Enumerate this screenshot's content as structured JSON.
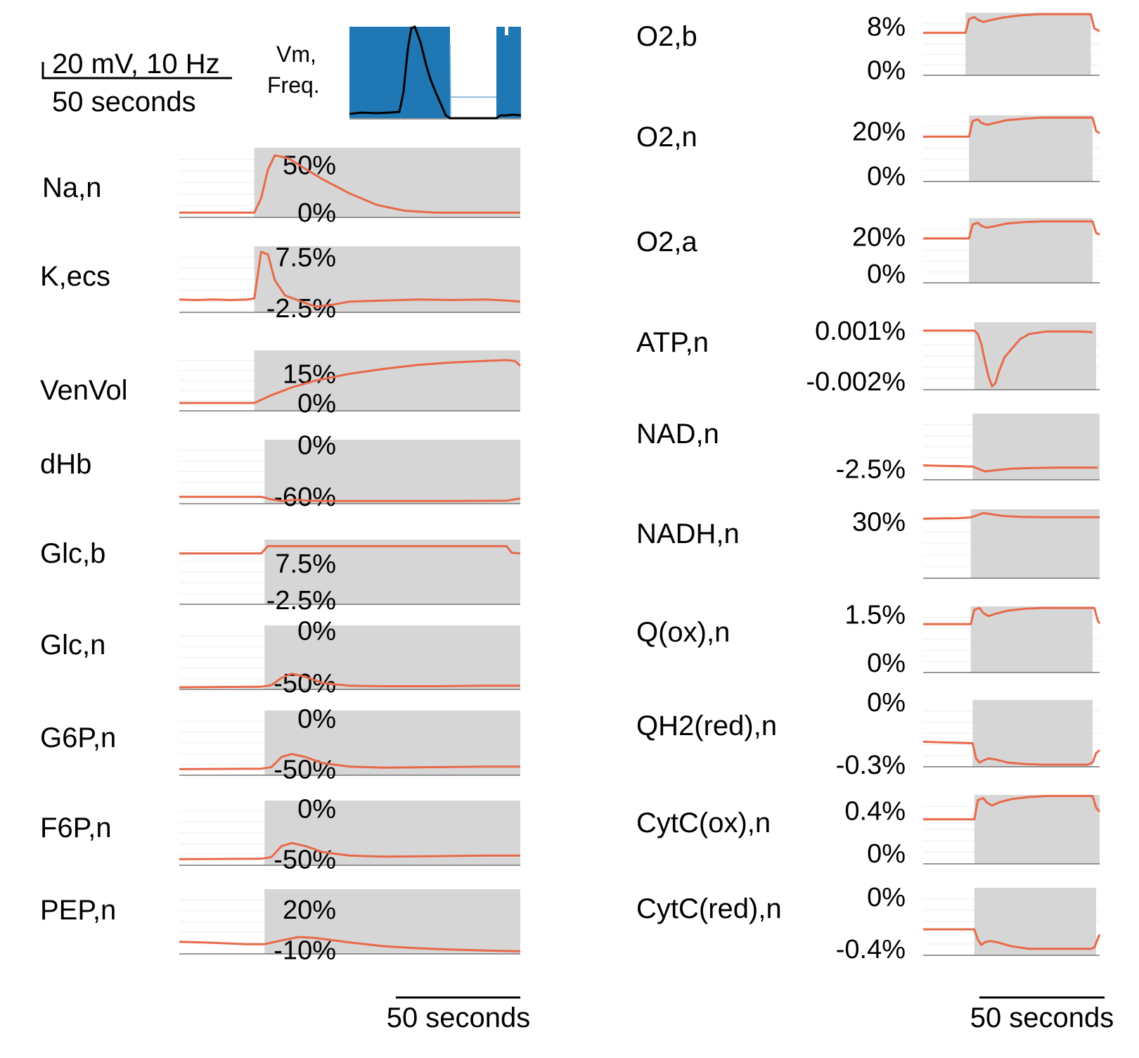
{
  "colors": {
    "trace": "#e8694a",
    "shade": "#d6d6d6",
    "vm": "#1f77b4",
    "freq": "#000000",
    "axis": "#777777",
    "grid": "#eeeeee"
  },
  "scale_bars": {
    "top_left": {
      "line1": "20 mV, 10 Hz",
      "line2": "50 seconds"
    },
    "bottom_left": "50 seconds",
    "bottom_right": "50 seconds"
  },
  "vm_panel": {
    "label_line1": "Vm,",
    "label_line2": "Freq."
  },
  "chart_data": [
    {
      "type": "line",
      "label": "Na,n",
      "ticks": [
        "50%",
        "0%"
      ],
      "tick_values": [
        50,
        0
      ],
      "ylim": [
        -5,
        68
      ],
      "stim": [
        0.22,
        1.0
      ],
      "x": [
        0,
        0.22,
        0.24,
        0.26,
        0.28,
        0.32,
        0.36,
        0.42,
        0.5,
        0.58,
        0.66,
        0.75,
        0.85,
        1.0
      ],
      "y": [
        0,
        0,
        15,
        45,
        60,
        57,
        48,
        35,
        20,
        8,
        2,
        0,
        0,
        0
      ]
    },
    {
      "type": "line",
      "label": "K,ecs",
      "ticks": [
        "7.5%",
        "-2.5%"
      ],
      "tick_values": [
        7.5,
        -2.5
      ],
      "ylim": [
        -3.3,
        9.6
      ],
      "stim": [
        0.22,
        1.0
      ],
      "x": [
        0,
        0.05,
        0.1,
        0.15,
        0.2,
        0.22,
        0.24,
        0.26,
        0.28,
        0.31,
        0.35,
        0.4,
        0.45,
        0.5,
        0.6,
        0.7,
        0.8,
        0.9,
        0.96,
        1.0
      ],
      "y": [
        -0.8,
        -0.9,
        -0.8,
        -0.9,
        -0.8,
        -0.6,
        8.5,
        8.0,
        3.0,
        0.0,
        -1.0,
        -2.2,
        -1.8,
        -1.2,
        -1.0,
        -0.8,
        -0.9,
        -0.8,
        -1.0,
        -1.2
      ]
    },
    {
      "type": "line",
      "label": "VenVol",
      "ticks": [
        "15%",
        "0%"
      ],
      "tick_values": [
        15,
        0
      ],
      "ylim": [
        -4,
        27
      ],
      "stim": [
        0.22,
        1.0
      ],
      "x": [
        0,
        0.22,
        0.27,
        0.33,
        0.4,
        0.5,
        0.6,
        0.7,
        0.8,
        0.9,
        0.96,
        0.985,
        1.0
      ],
      "y": [
        0,
        0,
        4,
        8,
        11.5,
        15,
        17.5,
        19.5,
        20.8,
        21.6,
        22,
        21.5,
        19
      ]
    },
    {
      "type": "line",
      "label": "dHb",
      "ticks": [
        "0%",
        "-60%"
      ],
      "tick_values": [
        0,
        -60
      ],
      "ylim": [
        -68,
        6
      ],
      "stim": [
        0.25,
        1.0
      ],
      "x": [
        0,
        0.24,
        0.27,
        0.3,
        0.34,
        0.38,
        0.45,
        0.6,
        0.8,
        0.96,
        1.0
      ],
      "y": [
        -60,
        -60,
        -63,
        -65,
        -63.5,
        -64.5,
        -65,
        -65,
        -65,
        -64.5,
        -62
      ]
    },
    {
      "type": "line",
      "label": "Glc,b",
      "ticks": [
        "7.5%",
        "-2.5%"
      ],
      "tick_values": [
        7.5,
        -2.5
      ],
      "ylim": [
        -3.7,
        14
      ],
      "stim": [
        0.25,
        1.0
      ],
      "x": [
        0,
        0.24,
        0.26,
        0.3,
        0.5,
        0.7,
        0.9,
        0.96,
        0.975,
        1.0
      ],
      "y": [
        10.2,
        10.2,
        12.2,
        12.2,
        12.2,
        12.2,
        12.2,
        12.2,
        10.4,
        10.2
      ]
    },
    {
      "type": "line",
      "label": "Glc,n",
      "ticks": [
        "0%",
        "-50%"
      ],
      "tick_values": [
        0,
        -50
      ],
      "ylim": [
        -56,
        5
      ],
      "stim": [
        0.25,
        1.0
      ],
      "x": [
        0,
        0.24,
        0.27,
        0.3,
        0.33,
        0.37,
        0.42,
        0.5,
        0.6,
        0.75,
        0.9,
        1.0
      ],
      "y": [
        -54,
        -53.5,
        -52,
        -45,
        -41,
        -44,
        -50,
        -52.5,
        -53,
        -53,
        -52.5,
        -52.5
      ]
    },
    {
      "type": "line",
      "label": "G6P,n",
      "ticks": [
        "0%",
        "-50%"
      ],
      "tick_values": [
        0,
        -50
      ],
      "ylim": [
        -56,
        8
      ],
      "stim": [
        0.25,
        1.0
      ],
      "x": [
        0,
        0.24,
        0.27,
        0.3,
        0.33,
        0.37,
        0.42,
        0.5,
        0.6,
        0.75,
        0.9,
        1.0
      ],
      "y": [
        -50,
        -49.5,
        -48,
        -38,
        -35,
        -38,
        -44,
        -47.5,
        -48.5,
        -48,
        -47.5,
        -47.5
      ]
    },
    {
      "type": "line",
      "label": "F6P,n",
      "ticks": [
        "0%",
        "-50%"
      ],
      "tick_values": [
        0,
        -50
      ],
      "ylim": [
        -56,
        8
      ],
      "stim": [
        0.25,
        1.0
      ],
      "x": [
        0,
        0.24,
        0.27,
        0.3,
        0.33,
        0.37,
        0.42,
        0.5,
        0.6,
        0.75,
        0.9,
        1.0
      ],
      "y": [
        -50,
        -49.5,
        -48,
        -37,
        -34,
        -37,
        -43,
        -46.5,
        -47.5,
        -47,
        -46.5,
        -46.5
      ]
    },
    {
      "type": "line",
      "label": "PEP,n",
      "ticks": [
        "20%",
        "-10%"
      ],
      "tick_values": [
        20,
        -10
      ],
      "ylim": [
        -13,
        35
      ],
      "stim": [
        0.25,
        1.0
      ],
      "x": [
        0,
        0.1,
        0.2,
        0.25,
        0.3,
        0.35,
        0.4,
        0.5,
        0.6,
        0.7,
        0.8,
        0.9,
        1.0
      ],
      "y": [
        -4,
        -4.8,
        -5.8,
        -5.8,
        -3,
        -0.5,
        -1.2,
        -4.5,
        -7.3,
        -8.8,
        -9.8,
        -10.5,
        -11
      ]
    },
    {
      "type": "line",
      "label": "O2,b",
      "ticks": [
        "8%",
        "0%"
      ],
      "tick_values": [
        8,
        0
      ],
      "ylim": [
        -1,
        10.5
      ],
      "stim": [
        0.24,
        0.95
      ],
      "x": [
        0,
        0.24,
        0.26,
        0.29,
        0.31,
        0.34,
        0.38,
        0.45,
        0.55,
        0.65,
        0.75,
        0.85,
        0.92,
        0.95,
        0.97,
        1.0
      ],
      "y": [
        6.8,
        6.8,
        9.3,
        9.7,
        9.2,
        8.8,
        9.1,
        9.6,
        10.0,
        10.2,
        10.2,
        10.2,
        10.2,
        10.2,
        7.6,
        7.1
      ]
    },
    {
      "type": "line",
      "label": "O2,n",
      "ticks": [
        "20%",
        "0%"
      ],
      "tick_values": [
        20,
        0
      ],
      "ylim": [
        -2.5,
        27
      ],
      "stim": [
        0.26,
        0.96
      ],
      "x": [
        0,
        0.26,
        0.28,
        0.31,
        0.33,
        0.36,
        0.4,
        0.47,
        0.57,
        0.67,
        0.77,
        0.87,
        0.94,
        0.96,
        0.98,
        1.0
      ],
      "y": [
        17.5,
        17.5,
        24.5,
        25.2,
        23.7,
        22.8,
        23.5,
        24.8,
        25.5,
        26,
        26,
        26,
        26,
        26,
        20,
        19
      ]
    },
    {
      "type": "line",
      "label": "O2,a",
      "ticks": [
        "20%",
        "0%"
      ],
      "tick_values": [
        20,
        0
      ],
      "ylim": [
        -5,
        30
      ],
      "stim": [
        0.26,
        0.96
      ],
      "x": [
        0,
        0.26,
        0.28,
        0.31,
        0.33,
        0.36,
        0.4,
        0.47,
        0.57,
        0.67,
        0.77,
        0.87,
        0.94,
        0.96,
        0.98,
        1.0
      ],
      "y": [
        19,
        19,
        26.5,
        27.5,
        25.8,
        24.8,
        25.5,
        27,
        27.8,
        28.2,
        28.2,
        28.2,
        28.2,
        28.2,
        22,
        21
      ]
    },
    {
      "type": "line",
      "label": "ATP,n",
      "ticks": [
        "0.001%",
        "-0.002%"
      ],
      "tick_values": [
        0.001,
        -0.002
      ],
      "ylim": [
        -0.0025,
        0.0015
      ],
      "stim": [
        0.29,
        0.98
      ],
      "x": [
        0,
        0.29,
        0.31,
        0.33,
        0.35,
        0.37,
        0.39,
        0.41,
        0.43,
        0.46,
        0.5,
        0.55,
        0.6,
        0.7,
        0.8,
        0.9,
        0.96
      ],
      "y": [
        0.001,
        0.001,
        0.0008,
        0.0002,
        -0.0008,
        -0.0017,
        -0.0023,
        -0.0021,
        -0.0014,
        -0.0006,
        -0.0001,
        0.0005,
        0.0008,
        0.00095,
        0.00095,
        0.00095,
        0.0009
      ]
    },
    {
      "type": "line",
      "label": "NAD,n",
      "ticks": [
        "-2.5%"
      ],
      "tick_values": [
        -2.5
      ],
      "ylim": [
        -3,
        0
      ],
      "stim": [
        0.28,
        1.0
      ],
      "x": [
        0,
        0.1,
        0.2,
        0.28,
        0.31,
        0.35,
        0.4,
        0.5,
        0.6,
        0.75,
        0.9,
        0.99
      ],
      "y": [
        -2.35,
        -2.37,
        -2.38,
        -2.4,
        -2.5,
        -2.62,
        -2.58,
        -2.5,
        -2.47,
        -2.45,
        -2.45,
        -2.45
      ]
    },
    {
      "type": "line",
      "label": "NADH,n",
      "ticks": [
        "30%"
      ],
      "tick_values": [
        30
      ],
      "ylim": [
        0,
        36.5
      ],
      "stim": [
        0.27,
        1.0
      ],
      "x": [
        0,
        0.1,
        0.2,
        0.27,
        0.31,
        0.34,
        0.38,
        0.45,
        0.55,
        0.7,
        0.85,
        1.0
      ],
      "y": [
        31.5,
        31.7,
        31.8,
        32.2,
        33.5,
        34.5,
        34,
        33,
        32.5,
        32.3,
        32.3,
        32.3
      ]
    },
    {
      "type": "line",
      "label": "Q(ox),n",
      "ticks": [
        "1.5%",
        "0%"
      ],
      "tick_values": [
        1.5,
        0
      ],
      "ylim": [
        -0.3,
        1.75
      ],
      "stim": [
        0.27,
        0.96
      ],
      "x": [
        0,
        0.27,
        0.29,
        0.32,
        0.34,
        0.37,
        0.41,
        0.48,
        0.58,
        0.68,
        0.78,
        0.88,
        0.95,
        0.97,
        0.99,
        1.0
      ],
      "y": [
        1.2,
        1.2,
        1.65,
        1.7,
        1.55,
        1.45,
        1.52,
        1.62,
        1.68,
        1.7,
        1.7,
        1.7,
        1.7,
        1.7,
        1.3,
        1.22
      ]
    },
    {
      "type": "line",
      "label": "QH2(red),n",
      "ticks": [
        "0%",
        "-0.3%"
      ],
      "tick_values": [
        0,
        -0.3
      ],
      "ylim": [
        -0.31,
        0.01
      ],
      "stim": [
        0.28,
        0.96
      ],
      "x": [
        0,
        0.1,
        0.2,
        0.28,
        0.3,
        0.32,
        0.34,
        0.37,
        0.41,
        0.48,
        0.58,
        0.68,
        0.78,
        0.88,
        0.93,
        0.96,
        0.98,
        1.0
      ],
      "y": [
        -0.19,
        -0.193,
        -0.195,
        -0.197,
        -0.27,
        -0.29,
        -0.28,
        -0.27,
        -0.275,
        -0.29,
        -0.297,
        -0.3,
        -0.3,
        -0.3,
        -0.3,
        -0.29,
        -0.245,
        -0.23
      ]
    },
    {
      "type": "line",
      "label": "CytC(ox),n",
      "ticks": [
        "0.4%",
        "0%"
      ],
      "tick_values": [
        0.4,
        0
      ],
      "ylim": [
        -0.1,
        0.55
      ],
      "stim": [
        0.29,
        1.0
      ],
      "x": [
        0,
        0.29,
        0.31,
        0.34,
        0.36,
        0.39,
        0.43,
        0.5,
        0.6,
        0.7,
        0.8,
        0.9,
        0.96,
        0.98,
        1.0
      ],
      "y": [
        0.32,
        0.32,
        0.5,
        0.52,
        0.48,
        0.45,
        0.48,
        0.51,
        0.53,
        0.54,
        0.54,
        0.54,
        0.54,
        0.43,
        0.39
      ]
    },
    {
      "type": "line",
      "label": "CytC(red),n",
      "ticks": [
        "0%",
        "-0.4%"
      ],
      "tick_values": [
        0,
        -0.4
      ],
      "ylim": [
        -0.45,
        0.07
      ],
      "stim": [
        0.29,
        0.98
      ],
      "x": [
        0,
        0.29,
        0.31,
        0.33,
        0.35,
        0.38,
        0.42,
        0.5,
        0.6,
        0.7,
        0.8,
        0.9,
        0.95,
        0.97,
        0.99,
        1.0
      ],
      "y": [
        -0.25,
        -0.25,
        -0.33,
        -0.37,
        -0.35,
        -0.34,
        -0.35,
        -0.38,
        -0.4,
        -0.4,
        -0.4,
        -0.4,
        -0.4,
        -0.39,
        -0.32,
        -0.29
      ]
    }
  ]
}
